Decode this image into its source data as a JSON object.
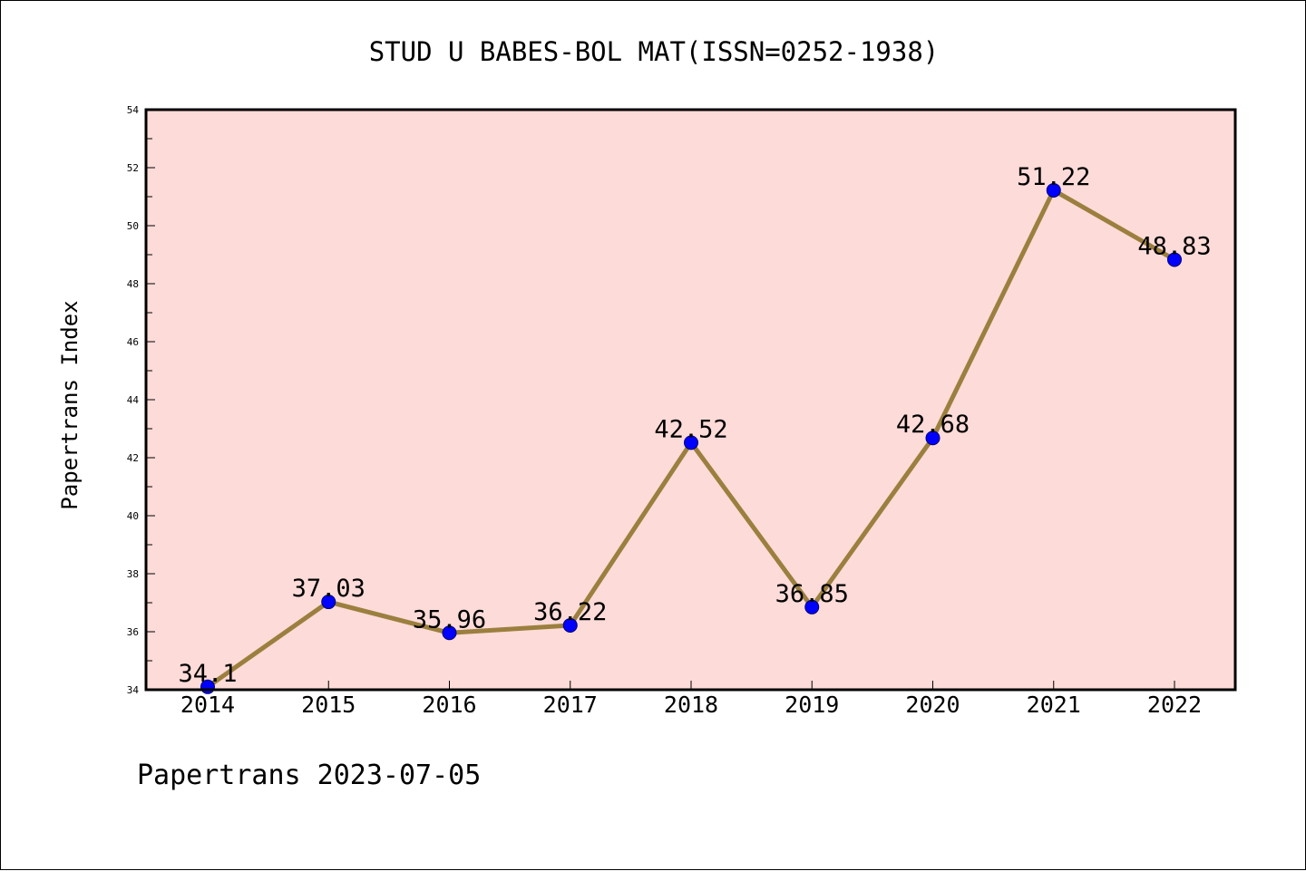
{
  "chart_data": {
    "type": "line",
    "title": "STUD U BABES-BOL MAT(ISSN=0252-1938)",
    "xlabel": "",
    "ylabel": "Papertrans Index",
    "categories": [
      "2014",
      "2015",
      "2016",
      "2017",
      "2018",
      "2019",
      "2020",
      "2021",
      "2022"
    ],
    "values": [
      34.1,
      37.03,
      35.96,
      36.22,
      42.52,
      36.85,
      42.68,
      51.22,
      48.83
    ],
    "value_labels": [
      "34.1",
      "37.03",
      "35.96",
      "36.22",
      "42.52",
      "36.85",
      "42.68",
      "51.22",
      "48.83"
    ],
    "ylim": [
      34,
      54
    ],
    "yticks": [
      "34",
      "36",
      "38",
      "40",
      "42",
      "44",
      "46",
      "48",
      "50",
      "52",
      "54"
    ],
    "grid": false,
    "legend": "none",
    "colors": {
      "plot_background": "#fddbd8",
      "line": "#9b7f3e",
      "marker": "#0000ff",
      "marker_edge": "#00006e",
      "axis": "#000000"
    },
    "footer": "Papertrans 2023-07-05"
  }
}
